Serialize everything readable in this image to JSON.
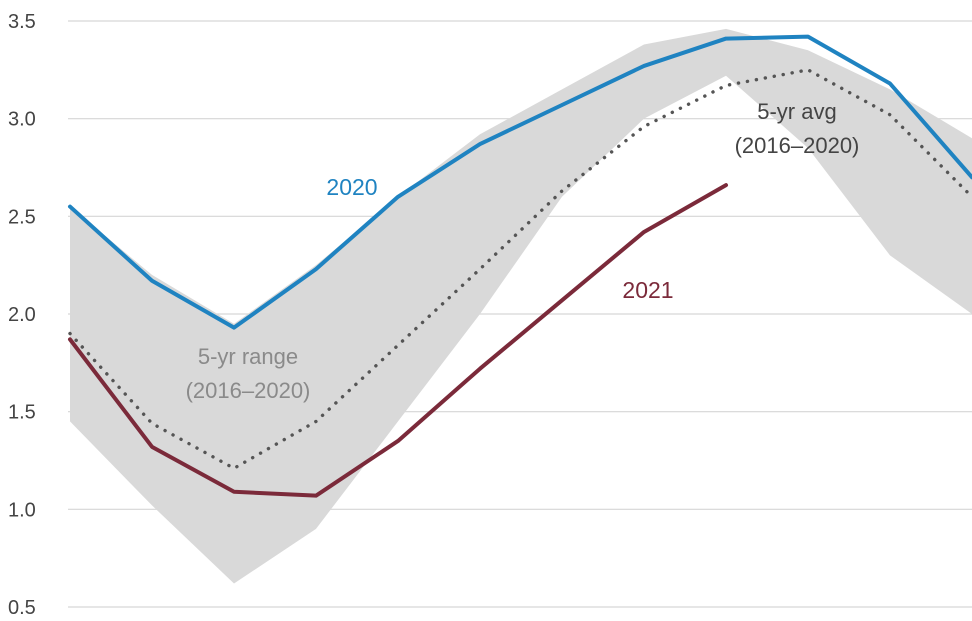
{
  "chart_data": {
    "type": "line",
    "title": "",
    "xlabel": "",
    "ylabel": "",
    "x": [
      1,
      2,
      3,
      4,
      5,
      6,
      7,
      8,
      9,
      10,
      11,
      12
    ],
    "ylim": [
      0.5,
      3.5
    ],
    "yticks": [
      0.5,
      1.0,
      1.5,
      2.0,
      2.5,
      3.0,
      3.5
    ],
    "ytick_labels": [
      "0.5",
      "1.0",
      "1.5",
      "2.0",
      "2.5",
      "3.0",
      "3.5"
    ],
    "grid": "horizontal",
    "band": {
      "label_line1": "5-yr range",
      "label_line2": "(2016–2020)",
      "color": "#d9d9d9",
      "low": [
        1.45,
        1.02,
        0.62,
        0.9,
        1.45,
        2.0,
        2.6,
        3.0,
        3.22,
        2.85,
        2.3,
        2.0
      ],
      "high": [
        2.55,
        2.2,
        1.95,
        2.25,
        2.6,
        2.92,
        3.15,
        3.38,
        3.46,
        3.35,
        3.15,
        2.9
      ]
    },
    "series": [
      {
        "name": "2020",
        "label": "2020",
        "color": "#1f83c1",
        "style": "solid",
        "values": [
          2.55,
          2.17,
          1.93,
          2.23,
          2.6,
          2.87,
          3.07,
          3.27,
          3.41,
          3.42,
          3.18,
          2.7
        ]
      },
      {
        "name": "5-yr avg (2016–2020)",
        "label_line1": "5-yr avg",
        "label_line2": "(2016–2020)",
        "color": "#555555",
        "style": "dotted",
        "values": [
          1.9,
          1.44,
          1.21,
          1.45,
          1.84,
          2.23,
          2.63,
          2.96,
          3.17,
          3.25,
          3.02,
          2.6
        ]
      },
      {
        "name": "2021",
        "label": "2021",
        "color": "#7b2a3a",
        "style": "solid",
        "values": [
          1.87,
          1.32,
          1.09,
          1.07,
          1.35,
          1.72,
          2.07,
          2.42,
          2.66,
          null,
          null,
          null
        ]
      }
    ]
  },
  "colors": {
    "gridline": "#d6d6d6",
    "tick_text": "#444444",
    "band_label": "#8a8a8a"
  }
}
